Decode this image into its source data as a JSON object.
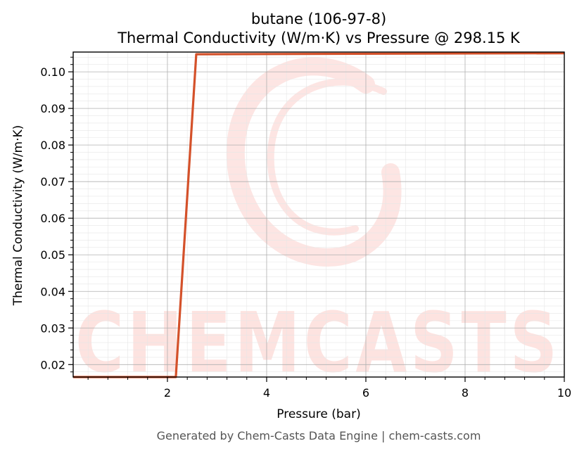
{
  "chart_data": {
    "type": "line",
    "title_line1": "butane (106-97-8)",
    "title_line2": "Thermal Conductivity (W/m·K) vs Pressure @ 298.15 K",
    "xlabel": "Pressure (bar)",
    "ylabel": "Thermal Conductivity (W/m·K)",
    "xlim": [
      0.1,
      10
    ],
    "ylim": [
      0.0166,
      0.1054
    ],
    "x_ticks": [
      2,
      4,
      6,
      8,
      10
    ],
    "y_ticks": [
      0.02,
      0.03,
      0.04,
      0.05,
      0.06,
      0.07,
      0.08,
      0.09,
      0.1
    ],
    "x_tick_labels": [
      "2",
      "4",
      "6",
      "8",
      "10"
    ],
    "y_tick_labels": [
      "0.02",
      "0.03",
      "0.04",
      "0.05",
      "0.06",
      "0.07",
      "0.08",
      "0.09",
      "0.10"
    ],
    "grid": true,
    "series": [
      {
        "color": "#d4512a",
        "x": [
          0.1,
          2.17,
          2.58,
          10
        ],
        "y": [
          0.0166,
          0.0166,
          0.1048,
          0.1051
        ]
      }
    ],
    "watermark": "CHEMCASTS",
    "watermark_color": "#fde3e0"
  },
  "footer": "Generated by Chem-Casts Data Engine | chem-casts.com"
}
